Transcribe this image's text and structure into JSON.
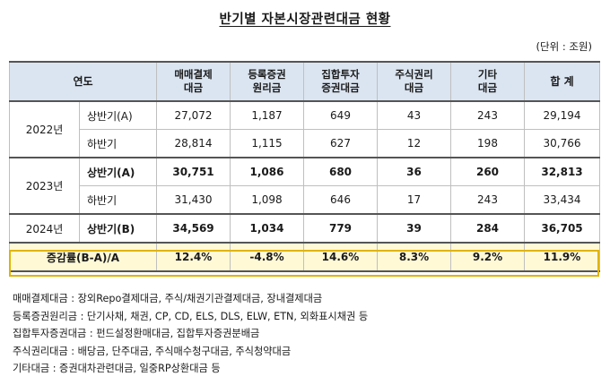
{
  "title": "반기별 자본시장관련대금 현황",
  "unit": "(단위 : 조원)",
  "table": {
    "headers": {
      "year": "연도",
      "c1": [
        "매매결제",
        "대금"
      ],
      "c2": [
        "등록증권",
        "원리금"
      ],
      "c3": [
        "집합투자",
        "증권대금"
      ],
      "c4": [
        "주식권리",
        "대금"
      ],
      "c5": [
        "기타",
        "대금"
      ],
      "c6": "합 계"
    },
    "groups": [
      {
        "year": "2022년",
        "rows": [
          {
            "half": "상반기(A)",
            "values": [
              "27,072",
              "1,187",
              "649",
              "43",
              "243",
              "29,194"
            ],
            "bold": false
          },
          {
            "half": "하반기",
            "values": [
              "28,814",
              "1,115",
              "627",
              "12",
              "198",
              "30,766"
            ],
            "bold": false
          }
        ]
      },
      {
        "year": "2023년",
        "rows": [
          {
            "half": "상반기(A)",
            "values": [
              "30,751",
              "1,086",
              "680",
              "36",
              "260",
              "32,813"
            ],
            "bold": true
          },
          {
            "half": "하반기",
            "values": [
              "31,430",
              "1,098",
              "646",
              "17",
              "243",
              "33,434"
            ],
            "bold": false
          }
        ]
      },
      {
        "year": "2024년",
        "rows": [
          {
            "half": "상반기(B)",
            "values": [
              "34,569",
              "1,034",
              "779",
              "39",
              "284",
              "36,705"
            ],
            "bold": true
          }
        ]
      }
    ],
    "rate": {
      "label": "증감률(B-A)/A",
      "values": [
        "12.4%",
        "-4.8%",
        "14.6%",
        "8.3%",
        "9.2%",
        "11.9%"
      ]
    }
  },
  "notes": [
    "매매결제대금 : 장외Repo결제대금, 주식/채권기관결제대금, 장내결제대금",
    "등록증권원리금 : 단기사채, 채권, CP, CD, ELS, DLS, ELW, ETN, 외화표시채권 등",
    "집합투자증권대금 : 펀드설정환매대금, 집합투자증권분배금",
    "주식권리대금 : 배당금, 단주대금, 주식매수청구대금, 주식청약대금",
    "기타대금 : 증권대차관련대금, 일중RP상환대금 등"
  ],
  "colors": {
    "header_bg": "#dbe5f1",
    "rate_bg": "#fff9d6",
    "rate_border": "#e0b400"
  }
}
